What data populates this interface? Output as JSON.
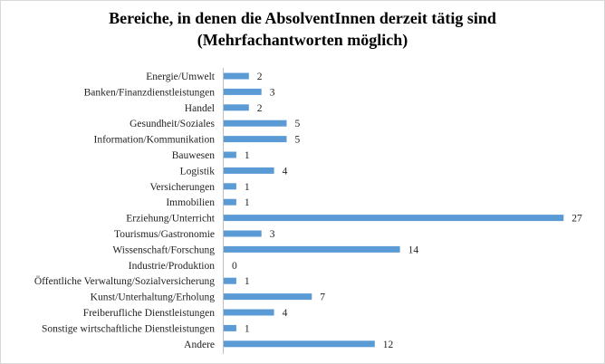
{
  "chart_data": {
    "type": "bar",
    "orientation": "horizontal",
    "title_line1": "Bereiche, in denen die AbsolventInnen derzeit tätig sind",
    "title_line2": "(Mehrfachantworten möglich)",
    "categories": [
      "Energie/Umwelt",
      "Banken/Finanzdienstleistungen",
      "Handel",
      "Gesundheit/Soziales",
      "Information/Kommunikation",
      "Bauwesen",
      "Logistik",
      "Versicherungen",
      "Immobilien",
      "Erziehung/Unterricht",
      "Tourismus/Gastronomie",
      "Wissenschaft/Forschung",
      "Industrie/Produktion",
      "Öffentliche Verwaltung/Sozialversicherung",
      "Kunst/Unterhaltung/Erholung",
      "Freiberufliche Dienstleistungen",
      "Sonstige wirtschaftliche Dienstleistungen",
      "Andere"
    ],
    "values": [
      2,
      3,
      2,
      5,
      5,
      1,
      4,
      1,
      1,
      27,
      3,
      14,
      0,
      1,
      7,
      4,
      1,
      12
    ],
    "bar_color": "#5b9bd5",
    "data_labels": true,
    "grid": false,
    "legend": "none"
  }
}
